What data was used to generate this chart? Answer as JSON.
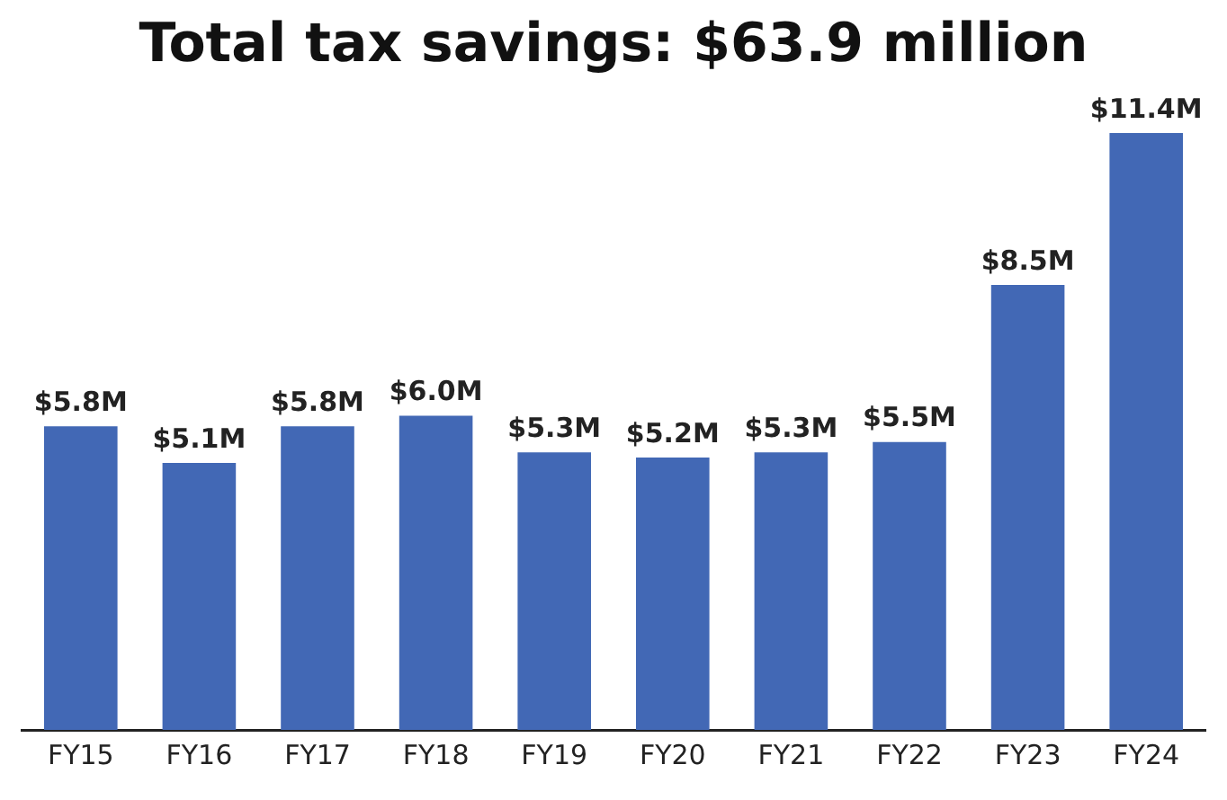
{
  "chart_data": {
    "type": "bar",
    "title": "Total tax savings: $63.9 million",
    "categories": [
      "FY15",
      "FY16",
      "FY17",
      "FY18",
      "FY19",
      "FY20",
      "FY21",
      "FY22",
      "FY23",
      "FY24"
    ],
    "values": [
      5.8,
      5.1,
      5.8,
      6.0,
      5.3,
      5.2,
      5.3,
      5.5,
      8.5,
      11.4
    ],
    "value_labels": [
      "$5.8M",
      "$5.1M",
      "$5.8M",
      "$6.0M",
      "$5.3M",
      "$5.2M",
      "$5.3M",
      "$5.5M",
      "$8.5M",
      "$11.4M"
    ],
    "color": "#4268b5",
    "grid": false,
    "legend": false
  }
}
